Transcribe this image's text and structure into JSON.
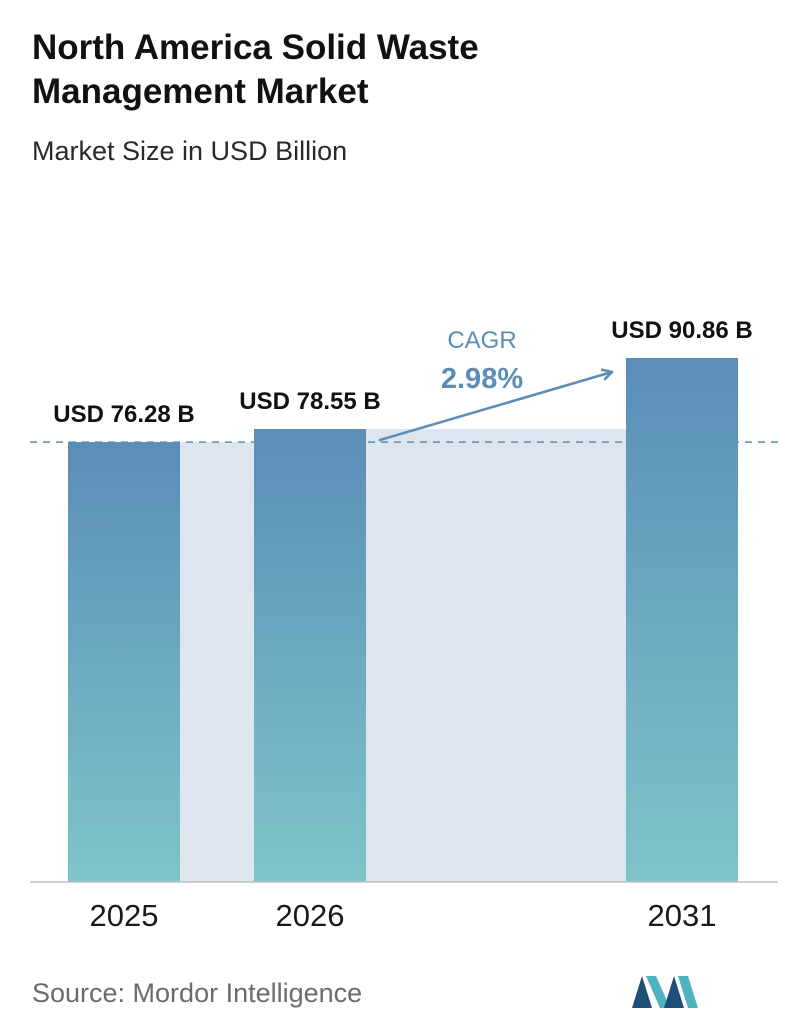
{
  "header": {
    "title": "North America Solid Waste Management Market",
    "subtitle": "Market Size in USD Billion"
  },
  "chart_data": {
    "type": "bar",
    "title": "North America Solid Waste Management Market",
    "subtitle": "Market Size in USD Billion",
    "categories": [
      "2025",
      "2026",
      "2031"
    ],
    "values": [
      76.28,
      78.55,
      90.86
    ],
    "value_labels": [
      "USD 76.28 B",
      "USD 78.55 B",
      "USD 90.86 B"
    ],
    "unit": "USD Billion",
    "annotation": {
      "label": "CAGR",
      "value": "2.98%"
    },
    "baseline_reference_value": 76.28,
    "ylim": [
      0,
      90.86
    ],
    "grid": false,
    "legend": "none",
    "colors": {
      "bar_top": "#5b8db8",
      "bar_bottom": "#7ec4c8",
      "band": "#dde6ef",
      "cagr": "#5b8db8",
      "dashed_line": "#5b8db8",
      "axis": "#bfbfbf"
    }
  },
  "footer": {
    "source": "Source:  Mordor Intelligence",
    "logo_icon": "mordor-intelligence-logo-icon",
    "logo_colors": {
      "dark": "#1f4e79",
      "light": "#4fb3bf"
    }
  }
}
